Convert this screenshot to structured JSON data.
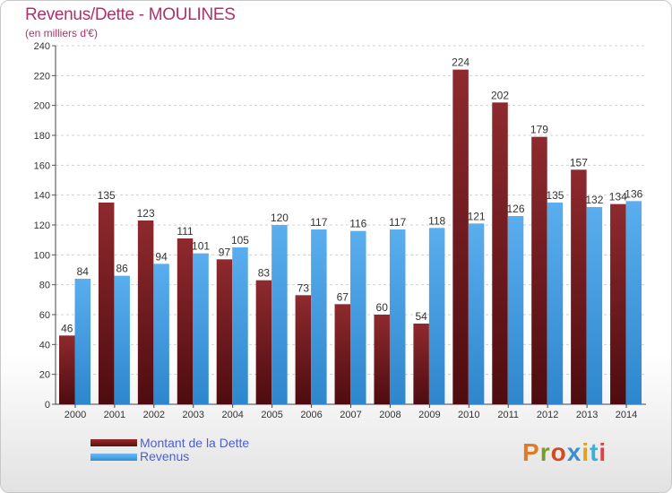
{
  "title": "Revenus/Dette - MOULINES",
  "subtitle": "(en milliers d'€)",
  "legend": {
    "debt_label": "Montant de la Dette",
    "revenue_label": "Revenus"
  },
  "logo": {
    "text": "Proxiti",
    "colors": [
      "#e07a26",
      "#7a9a2a",
      "#d44a1e",
      "#3a8fd0",
      "#e0a020",
      "#3ab0d8",
      "#e04040"
    ]
  },
  "colors": {
    "debt": "#7a1e22",
    "revenue": "#4aa3e8",
    "title": "#b0306a",
    "legend_text": "#4a5fd0"
  },
  "chart_data": {
    "type": "bar",
    "categories": [
      "2000",
      "2001",
      "2002",
      "2003",
      "2004",
      "2005",
      "2006",
      "2007",
      "2008",
      "2009",
      "2010",
      "2011",
      "2012",
      "2013",
      "2014"
    ],
    "series": [
      {
        "name": "Montant de la Dette",
        "values": [
          46,
          135,
          123,
          111,
          97,
          83,
          73,
          67,
          60,
          54,
          224,
          202,
          179,
          157,
          134
        ]
      },
      {
        "name": "Revenus",
        "values": [
          84,
          86,
          94,
          101,
          105,
          120,
          117,
          116,
          117,
          118,
          121,
          126,
          135,
          132,
          136
        ]
      }
    ],
    "ylim": [
      0,
      240
    ],
    "yticks": [
      0,
      20,
      40,
      60,
      80,
      100,
      120,
      140,
      160,
      180,
      200,
      220,
      240
    ],
    "grid": true,
    "legend_position": "bottom-left"
  }
}
